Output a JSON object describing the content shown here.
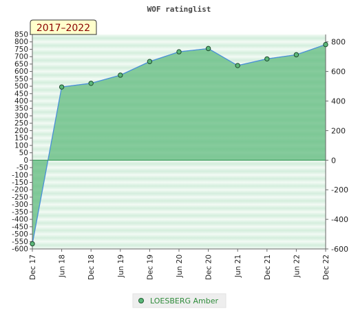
{
  "chart_data": {
    "type": "area",
    "title": "WOF ratinglist",
    "badge": "2017–2022",
    "categories": [
      "Dec 17",
      "Jun 18",
      "Dec 18",
      "Jun 19",
      "Dec 19",
      "Jun 20",
      "Dec 20",
      "Jun 21",
      "Dec 21",
      "Jun 22",
      "Dec 22"
    ],
    "series": [
      {
        "name": "LOESBERG Amber",
        "values": [
          -565,
          495,
          520,
          575,
          667,
          733,
          755,
          640,
          685,
          713,
          782
        ]
      }
    ],
    "ylim": [
      -600,
      850
    ],
    "left_ticks": [
      -600,
      -550,
      -500,
      -450,
      -400,
      -350,
      -300,
      -250,
      -200,
      -150,
      -100,
      -50,
      0,
      50,
      100,
      150,
      200,
      250,
      300,
      350,
      400,
      450,
      500,
      550,
      600,
      650,
      700,
      750,
      800,
      850
    ],
    "right_ticks": [
      -600,
      -400,
      -200,
      0,
      200,
      400,
      600,
      800
    ],
    "legend_position": "bottom-center",
    "grid": true,
    "colors": {
      "fill": "#5cb87a",
      "line": "#4a90d9",
      "marker": "#2e8b57",
      "badge_bg": "#ffffcc",
      "badge_text": "#8b0000",
      "legend_text": "#2e8b3a"
    }
  }
}
